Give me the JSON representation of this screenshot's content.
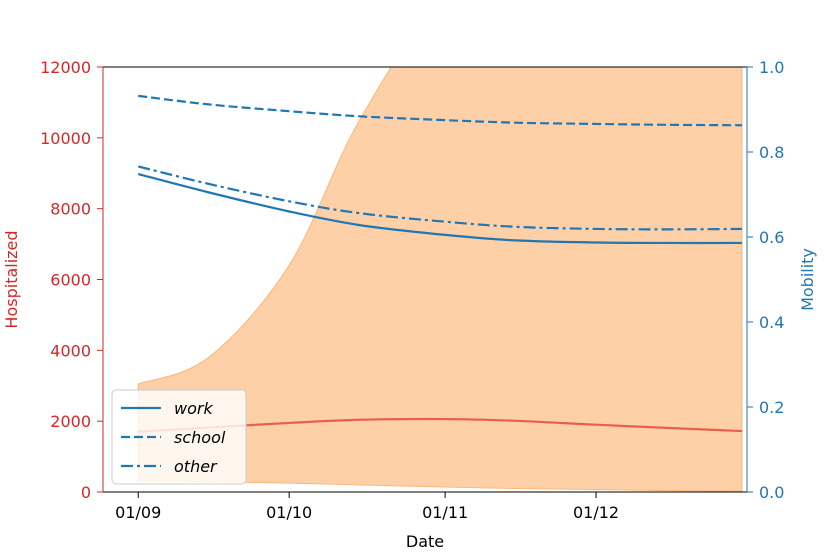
{
  "chart_data": {
    "type": "line",
    "xlabel": "Date",
    "ylabel_left": "Hospitalized",
    "ylabel_right": "Mobility",
    "x_ticks": [
      "01/09",
      "01/10",
      "01/11",
      "01/12"
    ],
    "x_tick_dates": [
      "2020-09-01",
      "2020-10-01",
      "2020-11-01",
      "2020-12-01"
    ],
    "x_range": [
      "2020-08-25",
      "2020-12-31"
    ],
    "y_left_range": [
      0,
      12000
    ],
    "y_left_ticks": [
      "0",
      "2000",
      "4000",
      "6000",
      "8000",
      "10000",
      "12000"
    ],
    "y_right_range": [
      0,
      1.0
    ],
    "y_right_ticks": [
      "0.0",
      "0.2",
      "0.4",
      "0.6",
      "0.8",
      "1.0"
    ],
    "grid": false,
    "legend_position": "lower-left",
    "colors": {
      "left_axis": "#d62728",
      "right_axis": "#1f77b4",
      "hospitalized_line": "#e8604c",
      "band_fill": "#fdd0a8",
      "band_edge": "#f9b878",
      "mobility": "#1f77b4"
    },
    "hospitalized": {
      "axis": "left",
      "dates": [
        "2020-09-01",
        "2020-09-15",
        "2020-10-01",
        "2020-10-15",
        "2020-11-01",
        "2020-11-15",
        "2020-12-01",
        "2020-12-15",
        "2020-12-30"
      ],
      "values": [
        1700,
        1820,
        1950,
        2040,
        2060,
        2010,
        1900,
        1810,
        1720
      ],
      "band_lower": [
        320,
        290,
        250,
        200,
        140,
        100,
        70,
        40,
        20
      ],
      "band_upper": [
        3050,
        3800,
        6400,
        10500,
        14000,
        14000,
        14000,
        14000,
        14000
      ]
    },
    "series": [
      {
        "name": "work",
        "style": "solid",
        "axis": "right",
        "dates": [
          "2020-09-01",
          "2020-09-15",
          "2020-10-01",
          "2020-10-15",
          "2020-11-01",
          "2020-11-15",
          "2020-12-01",
          "2020-12-15",
          "2020-12-30"
        ],
        "values": [
          0.748,
          0.705,
          0.66,
          0.628,
          0.605,
          0.592,
          0.587,
          0.586,
          0.586
        ]
      },
      {
        "name": "school",
        "style": "dashed",
        "axis": "right",
        "dates": [
          "2020-09-01",
          "2020-09-15",
          "2020-10-01",
          "2020-10-15",
          "2020-11-01",
          "2020-11-15",
          "2020-12-01",
          "2020-12-15",
          "2020-12-30"
        ],
        "values": [
          0.932,
          0.912,
          0.896,
          0.884,
          0.875,
          0.869,
          0.866,
          0.864,
          0.863
        ]
      },
      {
        "name": "other",
        "style": "dashdot",
        "axis": "right",
        "dates": [
          "2020-09-01",
          "2020-09-15",
          "2020-10-01",
          "2020-10-15",
          "2020-11-01",
          "2020-11-15",
          "2020-12-01",
          "2020-12-15",
          "2020-12-30"
        ],
        "values": [
          0.766,
          0.725,
          0.684,
          0.656,
          0.636,
          0.624,
          0.619,
          0.618,
          0.619
        ]
      }
    ]
  }
}
